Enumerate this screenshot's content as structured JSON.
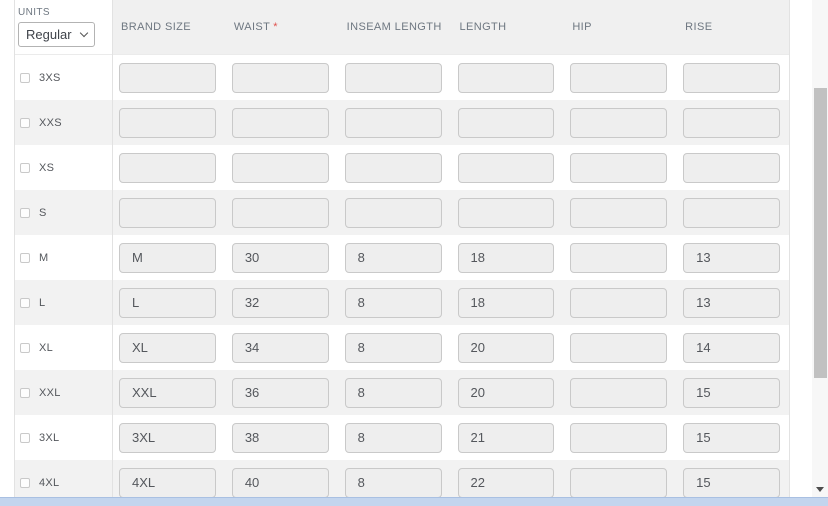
{
  "table": {
    "units_label": "UNITS",
    "units_selected": "Regular",
    "required_marker": "*",
    "columns": [
      {
        "label": "BRAND SIZE",
        "required": false
      },
      {
        "label": "WAIST",
        "required": true
      },
      {
        "label": "INSEAM LENGTH",
        "required": false
      },
      {
        "label": "LENGTH",
        "required": false
      },
      {
        "label": "HIP",
        "required": false
      },
      {
        "label": "RISE",
        "required": false
      }
    ],
    "rows": [
      {
        "label": "3XS",
        "values": [
          "",
          "",
          "",
          "",
          "",
          ""
        ]
      },
      {
        "label": "XXS",
        "values": [
          "",
          "",
          "",
          "",
          "",
          ""
        ]
      },
      {
        "label": "XS",
        "values": [
          "",
          "",
          "",
          "",
          "",
          ""
        ]
      },
      {
        "label": "S",
        "values": [
          "",
          "",
          "",
          "",
          "",
          ""
        ]
      },
      {
        "label": "M",
        "values": [
          "M",
          "30",
          "8",
          "18",
          "",
          "13"
        ]
      },
      {
        "label": "L",
        "values": [
          "L",
          "32",
          "8",
          "18",
          "",
          "13"
        ]
      },
      {
        "label": "XL",
        "values": [
          "XL",
          "34",
          "8",
          "20",
          "",
          "14"
        ]
      },
      {
        "label": "XXL",
        "values": [
          "XXL",
          "36",
          "8",
          "20",
          "",
          "15"
        ]
      },
      {
        "label": "3XL",
        "values": [
          "3XL",
          "38",
          "8",
          "21",
          "",
          "15"
        ]
      },
      {
        "label": "4XL",
        "values": [
          "4XL",
          "40",
          "8",
          "22",
          "",
          "15"
        ]
      }
    ]
  },
  "colors": {
    "required_asterisk": "#e0524e",
    "header_bg": "#f0f0f0",
    "row_alt_bg": "#f2f2f2",
    "input_bg": "#eeeeee",
    "vscroll_thumb": "#c1c1c1",
    "hscroll_thumb": "#c3d5ee"
  }
}
